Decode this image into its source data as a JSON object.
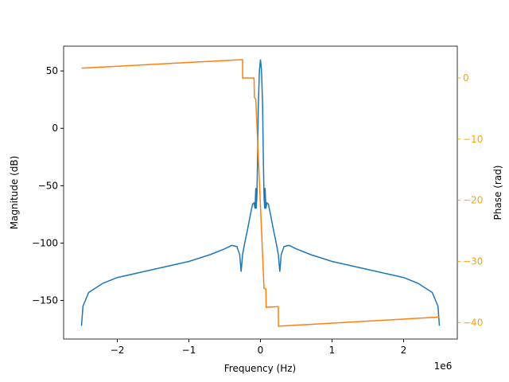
{
  "chart_data": {
    "type": "line",
    "x_label": "Frequency (Hz)",
    "y_label": "Magnitude (dB)",
    "y2_label": "Phase (rad)",
    "x_offset_label": "1e6",
    "xlim": [
      -2.75,
      2.75
    ],
    "xticks": [
      {
        "value": -2,
        "label": "−2"
      },
      {
        "value": -1,
        "label": "−1"
      },
      0,
      1,
      2
    ],
    "ylim": [
      -183.6,
      71.6
    ],
    "yticks": [
      50,
      0,
      {
        "value": -50,
        "label": "−50"
      },
      {
        "value": -100,
        "label": "−100"
      },
      {
        "value": -150,
        "label": "−150"
      }
    ],
    "y2lim": [
      -42.7,
      5.2
    ],
    "y2ticks": [
      0,
      {
        "value": -10,
        "label": "−10"
      },
      {
        "value": -20,
        "label": "−20"
      },
      {
        "value": -30,
        "label": "−30"
      },
      {
        "value": -40,
        "label": "−40"
      }
    ],
    "y2_tick_color": "#ffa500",
    "series": [
      {
        "color": "#1f77b4",
        "x": [
          -2.5,
          -2.48,
          -2.4,
          -2.2,
          -2.0,
          -1.5,
          -1.0,
          -0.7,
          -0.5,
          -0.4,
          -0.33,
          -0.29,
          -0.27,
          -0.25,
          -0.22,
          -0.18,
          -0.14,
          -0.11,
          -0.09,
          -0.075,
          -0.07,
          -0.065,
          -0.06,
          -0.05,
          -0.04,
          -0.03,
          -0.015,
          0,
          0.015,
          0.03,
          0.04,
          0.05,
          0.06,
          0.065,
          0.07,
          0.075,
          0.09,
          0.11,
          0.14,
          0.18,
          0.22,
          0.25,
          0.27,
          0.29,
          0.33,
          0.4,
          0.5,
          0.7,
          1.0,
          1.5,
          2.0,
          2.2,
          2.4,
          2.48,
          2.5
        ],
        "values": [
          -172,
          -155,
          -143,
          -135,
          -130,
          -123,
          -116,
          -110,
          -105,
          -102,
          -103,
          -110,
          -125,
          -110,
          -100,
          -88,
          -75,
          -66,
          -65,
          -70,
          -60,
          -52,
          -70,
          -60,
          -25,
          20,
          50,
          60,
          50,
          20,
          -25,
          -60,
          -70,
          -52,
          -60,
          -70,
          -65,
          -66,
          -75,
          -88,
          -100,
          -110,
          -125,
          -110,
          -103,
          -102,
          -105,
          -110,
          -116,
          -123,
          -130,
          -135,
          -143,
          -155,
          -172
        ]
      },
      {
        "color": "#ff7f0e",
        "axis": "y2",
        "x": [
          -2.5,
          -0.25,
          -0.249,
          -0.09,
          -0.085,
          -0.065,
          0.05,
          0.075,
          0.08,
          0.25,
          0.251,
          2.5
        ],
        "values": [
          1.6,
          3.0,
          0,
          0,
          -3.2,
          -3.5,
          -34.4,
          -34.5,
          -37.5,
          -37.4,
          -40.6,
          -39.1
        ]
      }
    ]
  }
}
